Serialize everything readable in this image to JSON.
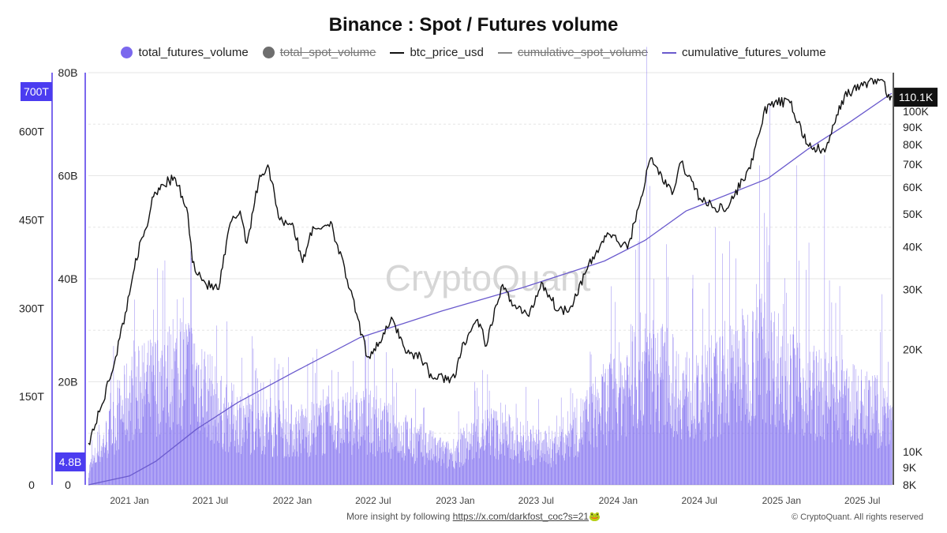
{
  "header": {
    "title": "Binance : Spot / Futures volume"
  },
  "legend": [
    {
      "label": "total_futures_volume",
      "marker": "dot",
      "color": "#7B68EE",
      "hidden": false
    },
    {
      "label": "total_spot_volume",
      "marker": "dot",
      "color": "#6e6e6e",
      "hidden": true
    },
    {
      "label": "btc_price_usd",
      "marker": "line",
      "color": "#111111",
      "hidden": false
    },
    {
      "label": "cumulative_spot_volume",
      "marker": "line",
      "color": "#888888",
      "hidden": true
    },
    {
      "label": "cumulative_futures_volume",
      "marker": "line",
      "color": "#6A5ACD",
      "hidden": false
    }
  ],
  "watermark": "CryptoQuant",
  "footer": {
    "text": "More insight by following ",
    "link": "https://x.com/darkfost_coc?s=21",
    "emoji": "🐸",
    "copyright": "© CryptoQuant. All rights reserved"
  },
  "colors": {
    "futures": "#7B68EE",
    "cumulative": "#6A5ACD",
    "price": "#111111",
    "grid": "#e6e6e6",
    "badge": "#4B3CF0"
  },
  "chart_data": {
    "type": "bar",
    "x_range": [
      "2020-10-01",
      "2025-09-05"
    ],
    "x_ticks": [
      "2021 Jan",
      "2021 Jul",
      "2022 Jan",
      "2022 Jul",
      "2023 Jan",
      "2023 Jul",
      "2024 Jan",
      "2024 Jul",
      "2025 Jan",
      "2025 Jul"
    ],
    "x_tick_dates": [
      "2021-01-01",
      "2021-07-01",
      "2022-01-01",
      "2022-07-01",
      "2023-01-01",
      "2023-07-01",
      "2024-01-01",
      "2024-07-01",
      "2025-01-01",
      "2025-07-01"
    ],
    "axes": {
      "cumulative": {
        "ticks": [
          "0",
          "150T",
          "300T",
          "450T",
          "600T"
        ],
        "tick_values": [
          0,
          150,
          300,
          450,
          600
        ],
        "ylim": [
          0,
          700
        ],
        "unit": "T",
        "badge": "700T"
      },
      "futures": {
        "ticks": [
          "0",
          "20B",
          "40B",
          "60B",
          "80B"
        ],
        "tick_values": [
          0,
          20,
          40,
          60,
          80
        ],
        "ylim": [
          0,
          80
        ],
        "unit": "B",
        "badge": "4.8B"
      },
      "price": {
        "scale": "log",
        "ticks": [
          "8K",
          "9K",
          "10K",
          "20K",
          "30K",
          "40K",
          "50K",
          "60K",
          "70K",
          "80K",
          "90K",
          "100K"
        ],
        "tick_values": [
          8000,
          9000,
          10000,
          20000,
          30000,
          40000,
          50000,
          60000,
          70000,
          80000,
          90000,
          100000
        ],
        "ylim": [
          8000,
          130000
        ],
        "badge": "110.1K"
      }
    },
    "series": [
      {
        "name": "btc_price_usd",
        "type": "line",
        "axis": "price",
        "points": [
          [
            "2020-10-01",
            10600
          ],
          [
            "2020-11-01",
            13800
          ],
          [
            "2020-12-01",
            19000
          ],
          [
            "2021-01-01",
            29000
          ],
          [
            "2021-01-15",
            37000
          ],
          [
            "2021-02-10",
            46000
          ],
          [
            "2021-02-21",
            56000
          ],
          [
            "2021-03-13",
            61000
          ],
          [
            "2021-04-14",
            63500
          ],
          [
            "2021-05-12",
            50000
          ],
          [
            "2021-05-22",
            36000
          ],
          [
            "2021-06-22",
            31000
          ],
          [
            "2021-07-20",
            30000
          ],
          [
            "2021-08-15",
            47000
          ],
          [
            "2021-09-06",
            51000
          ],
          [
            "2021-09-21",
            41000
          ],
          [
            "2021-10-20",
            65000
          ],
          [
            "2021-11-10",
            68000
          ],
          [
            "2021-12-04",
            48000
          ],
          [
            "2022-01-01",
            47000
          ],
          [
            "2022-01-24",
            36000
          ],
          [
            "2022-02-10",
            44000
          ],
          [
            "2022-03-28",
            47500
          ],
          [
            "2022-05-10",
            30000
          ],
          [
            "2022-06-18",
            19000
          ],
          [
            "2022-07-15",
            21000
          ],
          [
            "2022-08-14",
            24500
          ],
          [
            "2022-09-15",
            19500
          ],
          [
            "2022-10-15",
            19200
          ],
          [
            "2022-11-10",
            16500
          ],
          [
            "2022-12-31",
            16500
          ],
          [
            "2023-01-20",
            21000
          ],
          [
            "2023-02-20",
            24500
          ],
          [
            "2023-03-12",
            20500
          ],
          [
            "2023-04-14",
            30500
          ],
          [
            "2023-05-15",
            27000
          ],
          [
            "2023-06-15",
            25000
          ],
          [
            "2023-07-13",
            31500
          ],
          [
            "2023-08-20",
            26000
          ],
          [
            "2023-09-15",
            26500
          ],
          [
            "2023-10-24",
            34500
          ],
          [
            "2023-12-08",
            44000
          ],
          [
            "2024-01-22",
            39500
          ],
          [
            "2024-02-15",
            52000
          ],
          [
            "2024-03-14",
            73000
          ],
          [
            "2024-05-01",
            57000
          ],
          [
            "2024-05-21",
            71000
          ],
          [
            "2024-07-05",
            55000
          ],
          [
            "2024-08-05",
            52000
          ],
          [
            "2024-09-06",
            53000
          ],
          [
            "2024-10-29",
            72000
          ],
          [
            "2024-11-22",
            99000
          ],
          [
            "2024-12-17",
            106500
          ],
          [
            "2025-01-20",
            106000
          ],
          [
            "2025-02-28",
            80000
          ],
          [
            "2025-04-08",
            76000
          ],
          [
            "2025-05-22",
            111500
          ],
          [
            "2025-07-14",
            122000
          ],
          [
            "2025-08-14",
            124000
          ],
          [
            "2025-09-01",
            108000
          ],
          [
            "2025-09-05",
            110100
          ]
        ]
      },
      {
        "name": "cumulative_futures_volume",
        "type": "line",
        "axis": "cumulative",
        "points": [
          [
            "2020-10-01",
            0
          ],
          [
            "2021-01-01",
            15
          ],
          [
            "2021-03-01",
            40
          ],
          [
            "2021-06-01",
            95
          ],
          [
            "2021-09-01",
            140
          ],
          [
            "2022-01-01",
            190
          ],
          [
            "2022-06-01",
            250
          ],
          [
            "2022-12-01",
            295
          ],
          [
            "2023-06-01",
            335
          ],
          [
            "2023-12-01",
            380
          ],
          [
            "2024-03-01",
            415
          ],
          [
            "2024-06-01",
            465
          ],
          [
            "2024-12-01",
            520
          ],
          [
            "2025-03-01",
            570
          ],
          [
            "2025-06-01",
            615
          ],
          [
            "2025-09-05",
            665
          ]
        ]
      },
      {
        "name": "total_futures_volume",
        "type": "bar",
        "axis": "futures",
        "daily_bars": true,
        "typical_level_by_period": [
          [
            "2020-10-01",
            3
          ],
          [
            "2021-01-01",
            18
          ],
          [
            "2021-05-15",
            24
          ],
          [
            "2021-08-01",
            14
          ],
          [
            "2022-01-01",
            11
          ],
          [
            "2022-06-15",
            13
          ],
          [
            "2022-12-15",
            6
          ],
          [
            "2023-03-15",
            11
          ],
          [
            "2023-08-01",
            7
          ],
          [
            "2023-11-01",
            14
          ],
          [
            "2024-03-01",
            24
          ],
          [
            "2024-07-01",
            17
          ],
          [
            "2024-11-15",
            27
          ],
          [
            "2025-03-01",
            19
          ],
          [
            "2025-09-05",
            14
          ]
        ],
        "peaks": [
          [
            "2021-05-19",
            44
          ],
          [
            "2021-04-18",
            36
          ],
          [
            "2021-02-23",
            34
          ],
          [
            "2022-06-13",
            27
          ],
          [
            "2024-03-05",
            85
          ],
          [
            "2024-03-12",
            58
          ],
          [
            "2024-08-05",
            50
          ],
          [
            "2024-12-05",
            74
          ],
          [
            "2024-11-12",
            62
          ],
          [
            "2025-02-03",
            62
          ],
          [
            "2025-04-07",
            64
          ],
          [
            "2025-03-03",
            47
          ],
          [
            "2025-08-14",
            37
          ]
        ]
      }
    ]
  }
}
